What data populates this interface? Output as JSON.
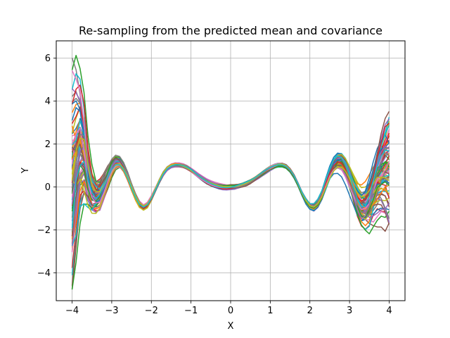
{
  "chart_data": {
    "type": "line",
    "title": "Re-sampling from the predicted mean and covariance",
    "xlabel": "X",
    "ylabel": "Y",
    "xlim": [
      -4.4,
      4.4
    ],
    "ylim": [
      -5.3,
      6.8
    ],
    "xticks": [
      -4,
      -3,
      -2,
      -1,
      0,
      1,
      2,
      3,
      4
    ],
    "yticks": [
      -4,
      -2,
      0,
      2,
      4,
      6
    ],
    "grid": true,
    "legend": "none",
    "sample_count": 80,
    "x": [
      -4.0,
      -3.9,
      -3.8,
      -3.7,
      -3.6,
      -3.5,
      -3.4,
      -3.3,
      -3.2,
      -3.1,
      -3.0,
      -2.9,
      -2.8,
      -2.7,
      -2.6,
      -2.5,
      -2.4,
      -2.3,
      -2.2,
      -2.1,
      -2.0,
      -1.9,
      -1.8,
      -1.7,
      -1.6,
      -1.5,
      -1.4,
      -1.3,
      -1.2,
      -1.1,
      -1.0,
      -0.9,
      -0.8,
      -0.7,
      -0.6,
      -0.5,
      -0.4,
      -0.3,
      -0.2,
      -0.1,
      0.0,
      0.1,
      0.2,
      0.3,
      0.4,
      0.5,
      0.6,
      0.7,
      0.8,
      0.9,
      1.0,
      1.1,
      1.2,
      1.3,
      1.4,
      1.5,
      1.6,
      1.7,
      1.8,
      1.9,
      2.0,
      2.1,
      2.2,
      2.3,
      2.4,
      2.5,
      2.6,
      2.7,
      2.8,
      2.9,
      3.0,
      3.1,
      3.2,
      3.3,
      3.4,
      3.5,
      3.6,
      3.7,
      3.8,
      3.9,
      4.0
    ],
    "mean": [
      0.2,
      1.0,
      1.8,
      1.5,
      0.5,
      -0.2,
      -0.4,
      -0.3,
      0.1,
      0.5,
      0.9,
      1.15,
      1.15,
      0.9,
      0.5,
      0.0,
      -0.45,
      -0.8,
      -0.95,
      -0.85,
      -0.55,
      -0.15,
      0.25,
      0.6,
      0.85,
      0.98,
      1.03,
      1.02,
      0.97,
      0.88,
      0.77,
      0.63,
      0.49,
      0.36,
      0.24,
      0.15,
      0.08,
      0.03,
      0.0,
      -0.01,
      0.0,
      0.01,
      0.04,
      0.09,
      0.16,
      0.25,
      0.36,
      0.49,
      0.62,
      0.75,
      0.87,
      0.96,
      1.02,
      1.02,
      0.95,
      0.78,
      0.5,
      0.12,
      -0.3,
      -0.65,
      -0.88,
      -0.93,
      -0.75,
      -0.4,
      0.1,
      0.6,
      0.98,
      1.18,
      1.15,
      0.88,
      0.42,
      -0.1,
      -0.6,
      -0.92,
      -0.95,
      -0.7,
      -0.25,
      0.25,
      0.6,
      0.8,
      0.9
    ],
    "std": [
      2.0,
      1.8,
      1.4,
      1.0,
      0.65,
      0.45,
      0.35,
      0.3,
      0.25,
      0.2,
      0.15,
      0.12,
      0.1,
      0.08,
      0.07,
      0.06,
      0.06,
      0.06,
      0.05,
      0.05,
      0.05,
      0.04,
      0.04,
      0.04,
      0.04,
      0.04,
      0.04,
      0.04,
      0.04,
      0.04,
      0.04,
      0.04,
      0.04,
      0.04,
      0.04,
      0.04,
      0.04,
      0.04,
      0.04,
      0.04,
      0.04,
      0.04,
      0.04,
      0.04,
      0.04,
      0.04,
      0.04,
      0.04,
      0.04,
      0.04,
      0.04,
      0.04,
      0.04,
      0.04,
      0.04,
      0.04,
      0.04,
      0.04,
      0.04,
      0.05,
      0.05,
      0.06,
      0.07,
      0.08,
      0.1,
      0.12,
      0.14,
      0.16,
      0.18,
      0.2,
      0.22,
      0.25,
      0.3,
      0.35,
      0.42,
      0.5,
      0.6,
      0.75,
      0.9,
      1.05,
      1.2
    ],
    "colors": [
      "#1f77b4",
      "#ff7f0e",
      "#2ca02c",
      "#d62728",
      "#9467bd",
      "#8c564b",
      "#e377c2",
      "#7f7f7f",
      "#bcbd22",
      "#17becf"
    ]
  }
}
